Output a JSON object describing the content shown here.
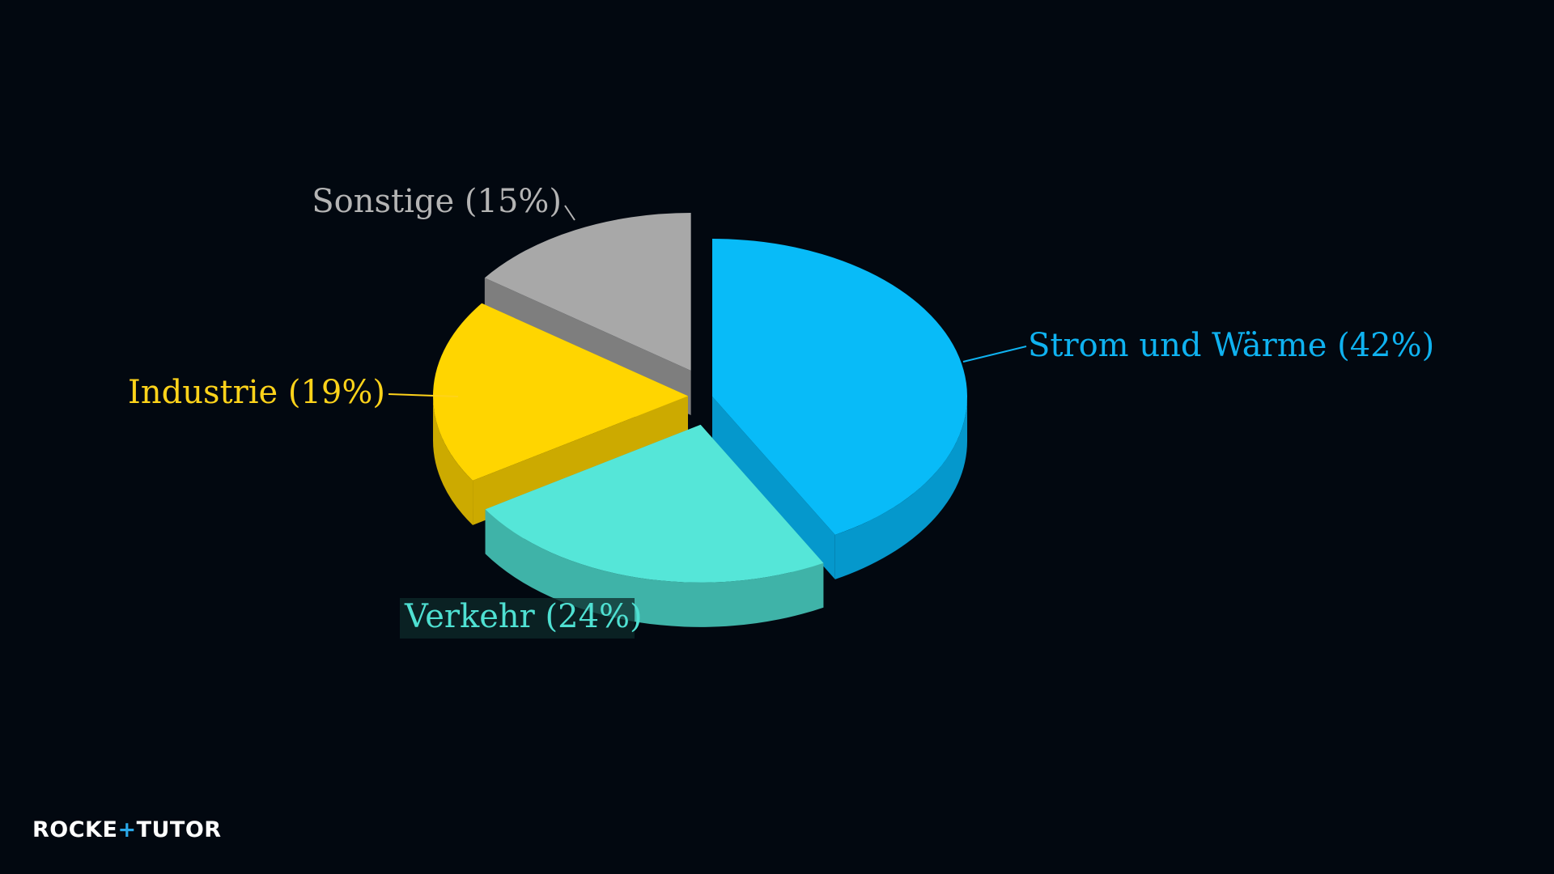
{
  "brand": {
    "part1": "ROCKE",
    "part2": "TUTO",
    "part3": "R"
  },
  "chart_data": {
    "type": "pie",
    "style": "3d-exploded",
    "slices": [
      {
        "label": "Strom und Wärme (42%)",
        "name": "Strom und Wärme",
        "value": 42,
        "color": "#08bbf8",
        "side_color": "#0598cc",
        "label_color": "#0fb2f0"
      },
      {
        "label": "Verkehr (24%)",
        "name": "Verkehr",
        "value": 24,
        "color": "#55e6d8",
        "side_color": "#3fb3a8",
        "label_color": "#4fe0d2"
      },
      {
        "label": "Industrie (19%)",
        "name": "Industrie",
        "value": 19,
        "color": "#ffd500",
        "side_color": "#ccaa00",
        "label_color": "#ffd31a"
      },
      {
        "label": "Sonstige (15%)",
        "name": "Sonstige",
        "value": 15,
        "color": "#a8a8a8",
        "side_color": "#7e7e7e",
        "label_color": "#b4b4b4"
      }
    ],
    "start": "12 o'clock",
    "direction": "clockwise",
    "background": "#020810"
  }
}
